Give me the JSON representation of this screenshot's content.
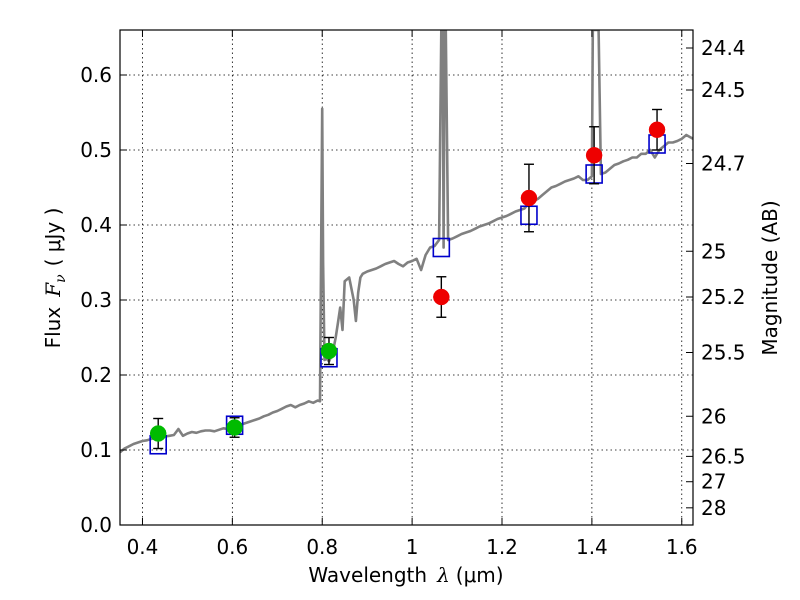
{
  "chart_data": {
    "type": "scatter",
    "xlabel_text": "Wavelength",
    "xlabel_symbol": "λ",
    "xlabel_unit": "(μm)",
    "ylabel_text": "Flux",
    "ylabel_symbol": "F",
    "ylabel_subscript": "ν",
    "ylabel_unit": "( μJy )",
    "y2label": "Magnitude (AB)",
    "xlim": [
      0.35,
      1.625
    ],
    "ylim": [
      0.0,
      0.66
    ],
    "grid": true,
    "x_ticks": [
      0.4,
      0.6,
      0.8,
      1.0,
      1.2,
      1.4,
      1.6
    ],
    "x_tick_labels": [
      "0.4",
      "0.6",
      "0.8",
      "1",
      "1.2",
      "1.4",
      "1.6"
    ],
    "y_ticks": [
      0.0,
      0.1,
      0.2,
      0.3,
      0.4,
      0.5,
      0.6
    ],
    "y_tick_labels": [
      "0.0",
      "0.1",
      "0.2",
      "0.3",
      "0.4",
      "0.5",
      "0.6"
    ],
    "y2_ticks": [
      {
        "label": "24.4",
        "flux": 0.636
      },
      {
        "label": "24.5",
        "flux": 0.58
      },
      {
        "label": "24.7",
        "flux": 0.482
      },
      {
        "label": "25",
        "flux": 0.365
      },
      {
        "label": "25.2",
        "flux": 0.304
      },
      {
        "label": "25.5",
        "flux": 0.23
      },
      {
        "label": "26",
        "flux": 0.145
      },
      {
        "label": "26.5",
        "flux": 0.0915
      },
      {
        "label": "27",
        "flux": 0.0577
      },
      {
        "label": "28",
        "flux": 0.0229
      }
    ],
    "colors": {
      "model": "#808080",
      "model_fluxes": "#0000cc",
      "ground_points": "#00bb00",
      "nir_points": "#ee0000",
      "errorbars": "#000000"
    },
    "series": [
      {
        "name": "model spectrum",
        "style": "line",
        "x": [
          0.35,
          0.36,
          0.37,
          0.38,
          0.39,
          0.4,
          0.41,
          0.42,
          0.43,
          0.44,
          0.45,
          0.46,
          0.47,
          0.48,
          0.49,
          0.5,
          0.51,
          0.52,
          0.53,
          0.54,
          0.55,
          0.56,
          0.57,
          0.58,
          0.59,
          0.6,
          0.61,
          0.62,
          0.63,
          0.64,
          0.65,
          0.66,
          0.67,
          0.68,
          0.69,
          0.7,
          0.71,
          0.72,
          0.73,
          0.74,
          0.75,
          0.76,
          0.77,
          0.78,
          0.79,
          0.795,
          0.8,
          0.802,
          0.805,
          0.81,
          0.815,
          0.82,
          0.825,
          0.83,
          0.835,
          0.84,
          0.845,
          0.85,
          0.86,
          0.87,
          0.875,
          0.88,
          0.885,
          0.89,
          0.9,
          0.91,
          0.92,
          0.93,
          0.94,
          0.95,
          0.96,
          0.97,
          0.98,
          0.99,
          1.0,
          1.01,
          1.02,
          1.03,
          1.04,
          1.05,
          1.06,
          1.065,
          1.068,
          1.07,
          1.072,
          1.075,
          1.08,
          1.09,
          1.1,
          1.11,
          1.12,
          1.13,
          1.14,
          1.15,
          1.16,
          1.17,
          1.18,
          1.19,
          1.2,
          1.21,
          1.22,
          1.23,
          1.24,
          1.25,
          1.26,
          1.27,
          1.28,
          1.29,
          1.3,
          1.31,
          1.32,
          1.33,
          1.34,
          1.35,
          1.36,
          1.37,
          1.38,
          1.39,
          1.4,
          1.402,
          1.405,
          1.41,
          1.415,
          1.42,
          1.43,
          1.44,
          1.45,
          1.46,
          1.47,
          1.48,
          1.49,
          1.5,
          1.51,
          1.52,
          1.53,
          1.54,
          1.55,
          1.56,
          1.57,
          1.58,
          1.59,
          1.6,
          1.61,
          1.625
        ],
        "y": [
          0.097,
          0.102,
          0.105,
          0.108,
          0.11,
          0.112,
          0.113,
          0.115,
          0.116,
          0.117,
          0.118,
          0.119,
          0.12,
          0.128,
          0.119,
          0.122,
          0.124,
          0.123,
          0.125,
          0.126,
          0.126,
          0.125,
          0.127,
          0.129,
          0.128,
          0.13,
          0.132,
          0.134,
          0.136,
          0.138,
          0.14,
          0.142,
          0.145,
          0.147,
          0.15,
          0.152,
          0.155,
          0.158,
          0.16,
          0.157,
          0.16,
          0.162,
          0.165,
          0.163,
          0.166,
          0.165,
          0.555,
          0.35,
          0.22,
          0.222,
          0.218,
          0.225,
          0.235,
          0.25,
          0.27,
          0.29,
          0.26,
          0.325,
          0.33,
          0.3,
          0.272,
          0.31,
          0.33,
          0.335,
          0.338,
          0.34,
          0.342,
          0.345,
          0.348,
          0.35,
          0.352,
          0.348,
          0.345,
          0.35,
          0.352,
          0.355,
          0.34,
          0.36,
          0.37,
          0.372,
          0.38,
          0.66,
          0.66,
          0.37,
          0.66,
          0.66,
          0.38,
          0.382,
          0.385,
          0.388,
          0.39,
          0.392,
          0.395,
          0.398,
          0.4,
          0.402,
          0.405,
          0.408,
          0.41,
          0.412,
          0.415,
          0.418,
          0.42,
          0.422,
          0.43,
          0.432,
          0.435,
          0.44,
          0.445,
          0.45,
          0.452,
          0.455,
          0.458,
          0.46,
          0.462,
          0.465,
          0.46,
          0.46,
          0.465,
          0.66,
          0.66,
          0.66,
          0.66,
          0.468,
          0.47,
          0.475,
          0.48,
          0.482,
          0.485,
          0.487,
          0.49,
          0.49,
          0.495,
          0.495,
          0.5,
          0.49,
          0.5,
          0.505,
          0.51,
          0.51,
          0.512,
          0.515,
          0.52,
          0.515
        ]
      },
      {
        "name": "model band fluxes",
        "style": "open-square",
        "x": [
          0.435,
          0.605,
          0.815,
          1.065,
          1.26,
          1.405,
          1.545
        ],
        "y": [
          0.107,
          0.133,
          0.223,
          0.37,
          0.413,
          0.468,
          0.508
        ]
      },
      {
        "name": "optical photometry",
        "style": "filled-circle",
        "x": [
          0.435,
          0.605,
          0.815
        ],
        "y": [
          0.122,
          0.13,
          0.232
        ],
        "yerr": [
          0.02,
          0.013,
          0.018
        ]
      },
      {
        "name": "near-infrared photometry",
        "style": "filled-circle",
        "x": [
          1.065,
          1.26,
          1.405,
          1.545
        ],
        "y": [
          0.304,
          0.436,
          0.493,
          0.527
        ],
        "yerr": [
          0.027,
          0.045,
          0.038,
          0.027
        ]
      }
    ]
  }
}
